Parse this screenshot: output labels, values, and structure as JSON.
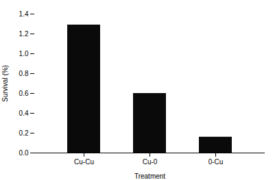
{
  "chart_data": {
    "type": "bar",
    "categories": [
      "Cu-Cu",
      "Cu-0",
      "0-Cu"
    ],
    "values": [
      1.29,
      0.6,
      0.16
    ],
    "color": "#0a0a0a",
    "xlabel": "Treatment",
    "ylabel": "Survival (%)",
    "ylim": [
      0,
      1.4
    ],
    "yticks": [
      {
        "value": 0,
        "label": "0.0"
      },
      0.2,
      0.4,
      0.6,
      0.8,
      {
        "value": 1,
        "label": "1.0"
      },
      1.2,
      1.4
    ],
    "grid": false
  }
}
